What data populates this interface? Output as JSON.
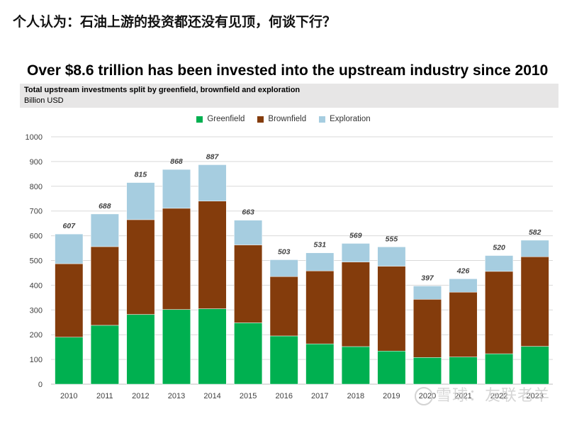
{
  "page_heading": "个人认为：石油上游的投资都还没有见顶，何谈下行？",
  "watermark": "雪球：友联老羊",
  "chart_data": {
    "type": "bar",
    "stacked": true,
    "title": "Over $8.6 trillion has been invested into the upstream industry since 2010",
    "subtitle": "Total upstream investments split by greenfield, brownfield and exploration",
    "ylabel": "Billion USD",
    "ylim": [
      0,
      1000
    ],
    "yticks": [
      0,
      100,
      200,
      300,
      400,
      500,
      600,
      700,
      800,
      900,
      1000
    ],
    "grid": true,
    "legend_position": "top",
    "categories": [
      "2010",
      "2011",
      "2012",
      "2013",
      "2014",
      "2015",
      "2016",
      "2017",
      "2018",
      "2019",
      "2020",
      "2021",
      "2022",
      "2023"
    ],
    "series": [
      {
        "name": "Greenfield",
        "color": "#00b050",
        "values": [
          190,
          238,
          282,
          302,
          305,
          248,
          195,
          163,
          152,
          134,
          108,
          110,
          123,
          153
        ]
      },
      {
        "name": "Brownfield",
        "color": "#843c0c",
        "values": [
          297,
          318,
          383,
          409,
          435,
          315,
          240,
          295,
          342,
          343,
          235,
          262,
          333,
          362
        ]
      },
      {
        "name": "Exploration",
        "color": "#a6cde0",
        "values": [
          120,
          132,
          150,
          157,
          147,
          100,
          68,
          73,
          75,
          78,
          54,
          54,
          64,
          67
        ]
      }
    ],
    "totals": [
      607,
      688,
      815,
      868,
      887,
      663,
      503,
      531,
      569,
      555,
      397,
      426,
      520,
      582
    ]
  }
}
